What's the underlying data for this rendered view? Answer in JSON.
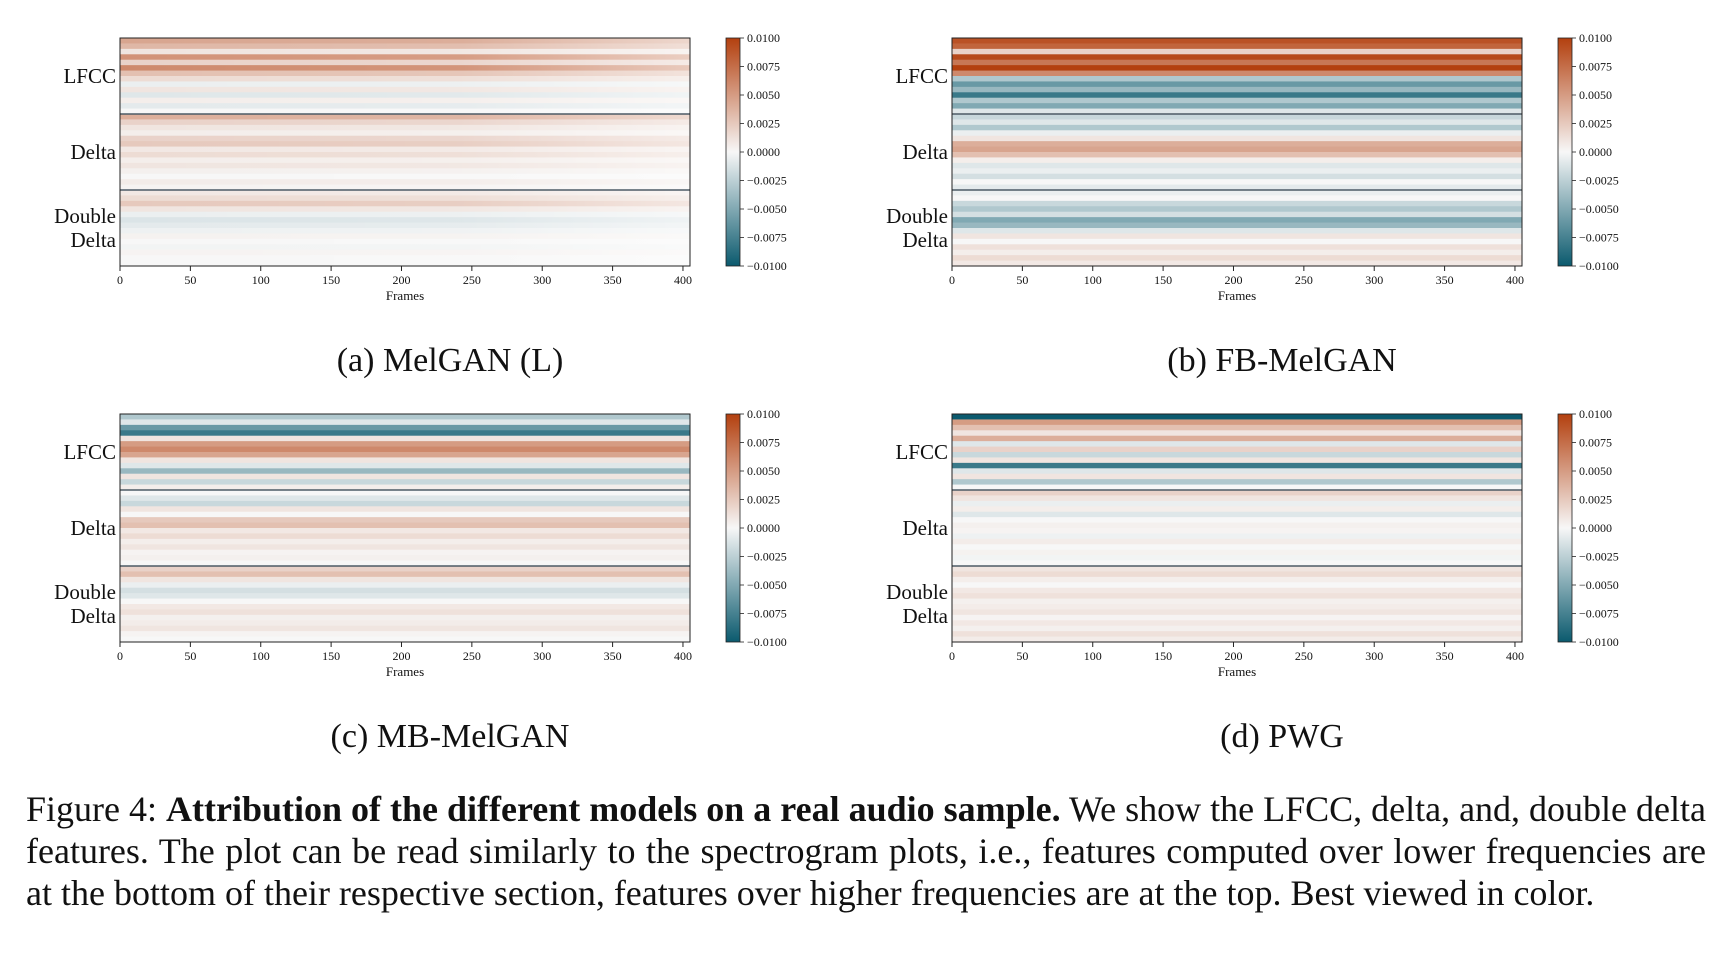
{
  "figure": {
    "label": "Figure 4:",
    "title": "Attribution of the different models on a real audio sample.",
    "text": "We show the LFCC, delta, and, double delta features. The plot can be read similarly to the spectrogram plots, i.e., features computed over lower frequencies are at the bottom of their respective section, features over higher frequencies are at the top. Best viewed in color."
  },
  "colormap": {
    "negative": "#0b5a6e",
    "zero": "#f7f7f7",
    "positive": "#b3400f"
  },
  "chart_data": [
    {
      "type": "heatmap",
      "caption": "(a) MelGAN (L)",
      "xlabel": "Frames",
      "xticks": [
        "0",
        "50",
        "100",
        "150",
        "200",
        "250",
        "300",
        "350",
        "400"
      ],
      "xlim": [
        0,
        405
      ],
      "ylabels": [
        "LFCC",
        "Delta",
        "Double",
        "Delta"
      ],
      "colorbar": {
        "min": -0.01,
        "max": 0.01,
        "ticks": [
          "0.0100",
          "0.0075",
          "0.0050",
          "0.0025",
          "0.0000",
          "−0.0025",
          "−0.0050",
          "−0.0075",
          "−0.0100"
        ]
      },
      "sections": [
        "LFCC",
        "Delta",
        "Double Delta"
      ],
      "row_values": [
        0.0045,
        0.0035,
        0.001,
        0.0055,
        0.002,
        0.006,
        0.003,
        0.0015,
        -0.0005,
        0.001,
        -0.001,
        0.0005,
        -0.0008,
        0.0,
        0.004,
        0.002,
        0.001,
        0.0005,
        0.002,
        0.0025,
        0.0008,
        0.0015,
        0.0005,
        0.001,
        0.0004,
        0.0,
        0.0006,
        0.0002,
        0.0008,
        0.0015,
        0.0025,
        0.001,
        -0.0005,
        -0.0012,
        -0.0008,
        -0.0004,
        0.0003,
        0.0,
        -0.0002,
        0.0002,
        0.0,
        0.0
      ],
      "fade_right": true
    },
    {
      "type": "heatmap",
      "caption": "(b) FB-MelGAN",
      "xlabel": "Frames",
      "xticks": [
        "0",
        "50",
        "100",
        "150",
        "200",
        "250",
        "300",
        "350",
        "400"
      ],
      "xlim": [
        0,
        405
      ],
      "ylabels": [
        "LFCC",
        "Delta",
        "Double",
        "Delta"
      ],
      "colorbar": {
        "min": -0.01,
        "max": 0.01,
        "ticks": [
          "0.0100",
          "0.0075",
          "0.0050",
          "0.0025",
          "0.0000",
          "−0.0025",
          "−0.0050",
          "−0.0075",
          "−0.0100"
        ]
      },
      "sections": [
        "LFCC",
        "Delta",
        "Double Delta"
      ],
      "row_values": [
        0.009,
        0.008,
        0.002,
        0.0095,
        0.007,
        0.01,
        0.006,
        -0.003,
        -0.006,
        -0.004,
        -0.008,
        -0.003,
        -0.005,
        -0.001,
        -0.002,
        -0.001,
        -0.003,
        -0.0005,
        0.001,
        0.004,
        0.0045,
        0.003,
        0.0005,
        -0.001,
        -0.0005,
        -0.0015,
        0.0,
        -0.0008,
        -0.0005,
        0.0,
        -0.002,
        -0.003,
        -0.0015,
        -0.005,
        -0.004,
        -0.001,
        0.001,
        0.0,
        0.0012,
        0.0005,
        0.0015,
        0.0008
      ],
      "fade_right": false
    },
    {
      "type": "heatmap",
      "caption": "(c) MB-MelGAN",
      "xlabel": "Frames",
      "xticks": [
        "0",
        "50",
        "100",
        "150",
        "200",
        "250",
        "300",
        "350",
        "400"
      ],
      "xlim": [
        0,
        405
      ],
      "ylabels": [
        "LFCC",
        "Delta",
        "Double",
        "Delta"
      ],
      "colorbar": {
        "min": -0.01,
        "max": 0.01,
        "ticks": [
          "0.0100",
          "0.0075",
          "0.0050",
          "0.0025",
          "0.0000",
          "−0.0025",
          "−0.0050",
          "−0.0075",
          "−0.0100"
        ]
      },
      "sections": [
        "LFCC",
        "Delta",
        "Double Delta"
      ],
      "row_values": [
        -0.003,
        -0.001,
        -0.006,
        -0.008,
        0.001,
        0.005,
        0.006,
        0.0045,
        0.001,
        -0.001,
        -0.004,
        0.001,
        -0.002,
        0.0005,
        0.0,
        -0.001,
        -0.002,
        0.001,
        0.0,
        0.0025,
        0.003,
        0.0008,
        0.0015,
        0.0005,
        0.001,
        0.0002,
        0.0004,
        0.0,
        0.002,
        0.003,
        0.001,
        -0.0005,
        -0.0015,
        -0.001,
        0.0,
        0.0008,
        0.0012,
        0.0004,
        0.0006,
        0.001,
        0.0002,
        0.0
      ],
      "fade_right": false
    },
    {
      "type": "heatmap",
      "caption": "(d) PWG",
      "xlabel": "Frames",
      "xticks": [
        "0",
        "50",
        "100",
        "150",
        "200",
        "250",
        "300",
        "350",
        "400"
      ],
      "xlim": [
        0,
        405
      ],
      "ylabels": [
        "LFCC",
        "Delta",
        "Double",
        "Delta"
      ],
      "colorbar": {
        "min": -0.01,
        "max": 0.01,
        "ticks": [
          "0.0100",
          "0.0075",
          "0.0050",
          "0.0025",
          "0.0000",
          "−0.0025",
          "−0.0050",
          "−0.0075",
          "−0.0100"
        ]
      },
      "sections": [
        "LFCC",
        "Delta",
        "Double Delta"
      ],
      "row_values": [
        -0.01,
        0.005,
        0.003,
        0.001,
        0.004,
        -0.001,
        0.002,
        -0.002,
        0.001,
        -0.008,
        -0.001,
        0.001,
        -0.003,
        0.0,
        0.002,
        0.001,
        -0.0005,
        0.0005,
        -0.001,
        0.0,
        0.0004,
        0.0002,
        -0.0004,
        0.0006,
        0.0,
        0.0003,
        -0.0002,
        0.0,
        0.001,
        0.0015,
        0.0005,
        0.0,
        0.0008,
        0.0012,
        0.0004,
        0.0006,
        0.001,
        0.0002,
        0.0008,
        0.0004,
        0.0012,
        0.0006
      ],
      "fade_right": false
    }
  ]
}
